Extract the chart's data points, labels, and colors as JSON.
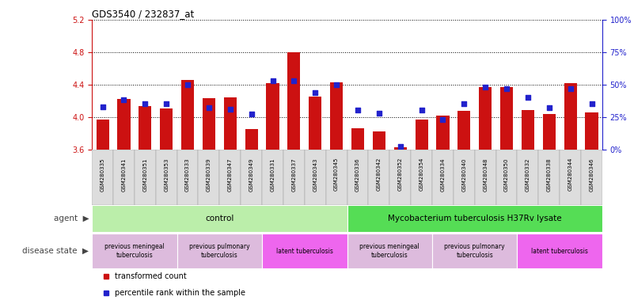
{
  "title": "GDS3540 / 232837_at",
  "samples": [
    "GSM280335",
    "GSM280341",
    "GSM280351",
    "GSM280353",
    "GSM280333",
    "GSM280339",
    "GSM280347",
    "GSM280349",
    "GSM280331",
    "GSM280337",
    "GSM280343",
    "GSM280345",
    "GSM280336",
    "GSM280342",
    "GSM280352",
    "GSM280354",
    "GSM280334",
    "GSM280340",
    "GSM280348",
    "GSM280350",
    "GSM280332",
    "GSM280338",
    "GSM280344",
    "GSM280346"
  ],
  "transformed_count": [
    3.97,
    4.22,
    4.13,
    4.1,
    4.46,
    4.23,
    4.24,
    3.85,
    4.42,
    4.8,
    4.25,
    4.43,
    3.86,
    3.82,
    3.62,
    3.97,
    4.02,
    4.07,
    4.37,
    4.37,
    4.08,
    4.04,
    4.42,
    4.06
  ],
  "percentile_rank": [
    33,
    38,
    35,
    35,
    50,
    32,
    31,
    27,
    53,
    53,
    44,
    50,
    30,
    28,
    2,
    30,
    23,
    35,
    48,
    47,
    40,
    32,
    47,
    35
  ],
  "ylim_left": [
    3.6,
    5.2
  ],
  "ylim_right": [
    0,
    100
  ],
  "yticks_left": [
    3.6,
    4.0,
    4.4,
    4.8,
    5.2
  ],
  "yticks_right": [
    0,
    25,
    50,
    75,
    100
  ],
  "bar_color": "#cc1111",
  "dot_color": "#2222cc",
  "agent_groups": [
    {
      "label": "control",
      "start": 0,
      "end": 11,
      "color": "#bbeeaa"
    },
    {
      "label": "Mycobacterium tuberculosis H37Rv lysate",
      "start": 12,
      "end": 23,
      "color": "#55dd55"
    }
  ],
  "disease_groups": [
    {
      "label": "previous meningeal\ntuberculosis",
      "start": 0,
      "end": 3,
      "color": "#ddbbdd"
    },
    {
      "label": "previous pulmonary\ntuberculosis",
      "start": 4,
      "end": 7,
      "color": "#ddbbdd"
    },
    {
      "label": "latent tuberculosis",
      "start": 8,
      "end": 11,
      "color": "#ee66ee"
    },
    {
      "label": "previous meningeal\ntuberculosis",
      "start": 12,
      "end": 15,
      "color": "#ddbbdd"
    },
    {
      "label": "previous pulmonary\ntuberculosis",
      "start": 16,
      "end": 19,
      "color": "#ddbbdd"
    },
    {
      "label": "latent tuberculosis",
      "start": 20,
      "end": 23,
      "color": "#ee66ee"
    }
  ]
}
